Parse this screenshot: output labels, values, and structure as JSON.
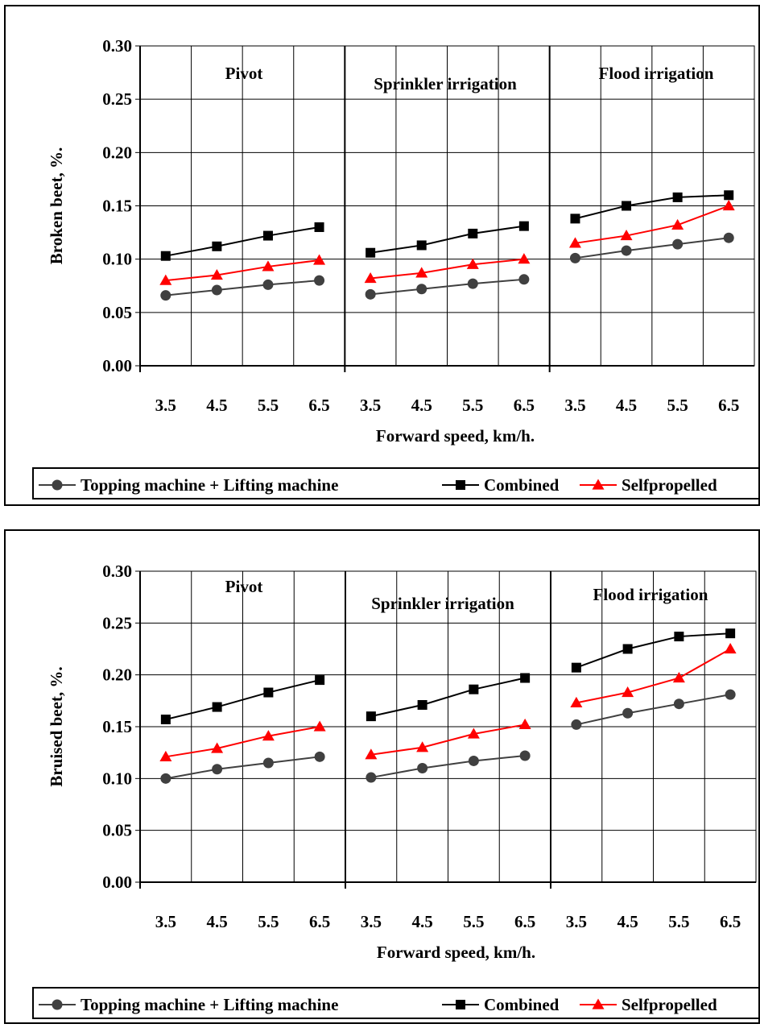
{
  "chart_data": [
    {
      "type": "line",
      "ylabel": "Broken beet, %.",
      "xlabel": "Forward speed, km/h.",
      "ylim": [
        0,
        0.3
      ],
      "y_ticks": [
        "0.00",
        "0.05",
        "0.10",
        "0.15",
        "0.20",
        "0.25",
        "0.30"
      ],
      "grid": true,
      "groups": [
        {
          "label": "Pivot",
          "categories": [
            "3.5",
            "4.5",
            "5.5",
            "6.5"
          ]
        },
        {
          "label": "Sprinkler irrigation",
          "categories": [
            "3.5",
            "4.5",
            "5.5",
            "6.5"
          ]
        },
        {
          "label": "Flood irrigation",
          "categories": [
            "3.5",
            "4.5",
            "5.5",
            "6.5"
          ]
        }
      ],
      "series": [
        {
          "name": "Topping machine + Lifting machine",
          "marker": "circle",
          "color": "#404040",
          "values": [
            [
              0.066,
              0.071,
              0.076,
              0.08
            ],
            [
              0.067,
              0.072,
              0.077,
              0.081
            ],
            [
              0.101,
              0.108,
              0.114,
              0.12
            ]
          ]
        },
        {
          "name": "Combined",
          "marker": "square",
          "color": "#000000",
          "values": [
            [
              0.103,
              0.112,
              0.122,
              0.13
            ],
            [
              0.106,
              0.113,
              0.124,
              0.131
            ],
            [
              0.138,
              0.15,
              0.158,
              0.16
            ]
          ]
        },
        {
          "name": "Selfpropelled",
          "marker": "triangle",
          "color": "#ff0000",
          "values": [
            [
              0.08,
              0.085,
              0.093,
              0.099
            ],
            [
              0.082,
              0.087,
              0.095,
              0.1
            ],
            [
              0.115,
              0.122,
              0.132,
              0.15
            ]
          ]
        }
      ]
    },
    {
      "type": "line",
      "ylabel": "Bruised beet, %.",
      "xlabel": "Forward speed, km/h.",
      "ylim": [
        0,
        0.3
      ],
      "y_ticks": [
        "0.00",
        "0.05",
        "0.10",
        "0.15",
        "0.20",
        "0.25",
        "0.30"
      ],
      "grid": true,
      "groups": [
        {
          "label": "Pivot",
          "categories": [
            "3.5",
            "4.5",
            "5.5",
            "6.5"
          ]
        },
        {
          "label": "Sprinkler irrigation",
          "categories": [
            "3.5",
            "4.5",
            "5.5",
            "6.5"
          ]
        },
        {
          "label": "Flood irrigation",
          "categories": [
            "3.5",
            "4.5",
            "5.5",
            "6.5"
          ]
        }
      ],
      "series": [
        {
          "name": "Topping machine + Lifting machine",
          "marker": "circle",
          "color": "#404040",
          "values": [
            [
              0.1,
              0.109,
              0.115,
              0.121
            ],
            [
              0.101,
              0.11,
              0.117,
              0.122
            ],
            [
              0.152,
              0.163,
              0.172,
              0.181
            ]
          ]
        },
        {
          "name": "Combined",
          "marker": "square",
          "color": "#000000",
          "values": [
            [
              0.157,
              0.169,
              0.183,
              0.195
            ],
            [
              0.16,
              0.171,
              0.186,
              0.197
            ],
            [
              0.207,
              0.225,
              0.237,
              0.24
            ]
          ]
        },
        {
          "name": "Selfpropelled",
          "marker": "triangle",
          "color": "#ff0000",
          "values": [
            [
              0.121,
              0.129,
              0.141,
              0.15
            ],
            [
              0.123,
              0.13,
              0.143,
              0.152
            ],
            [
              0.173,
              0.183,
              0.197,
              0.225
            ]
          ]
        }
      ]
    }
  ]
}
